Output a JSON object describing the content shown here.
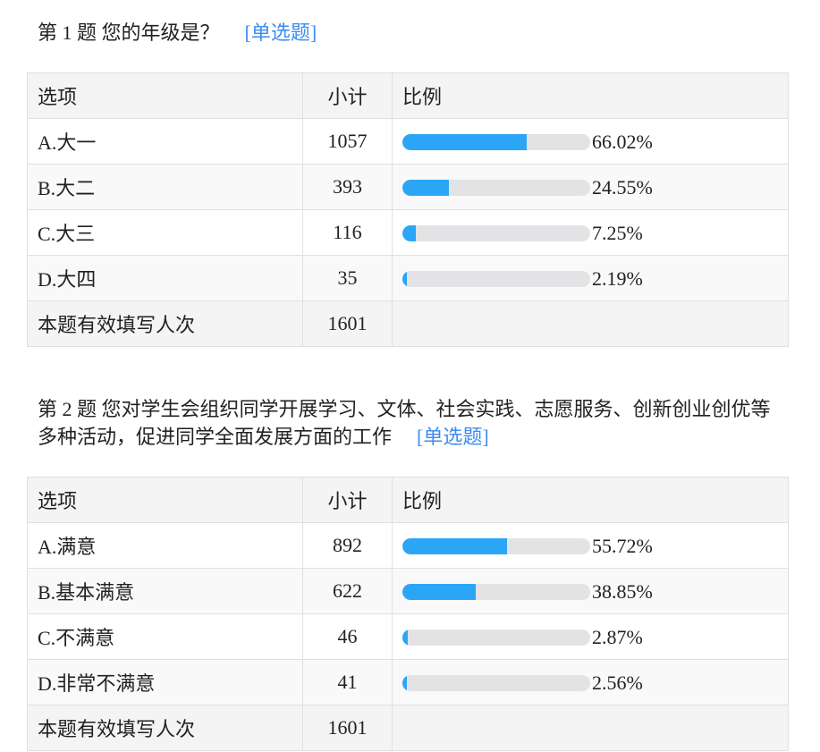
{
  "questions": [
    {
      "title": "第 1 题   您的年级是？",
      "type": "[单选题]",
      "headers": [
        "选项",
        "小计",
        "比例"
      ],
      "rows": [
        {
          "option": "A.大一",
          "count": "1057",
          "percent": "66.02%",
          "fraction": 0.6602
        },
        {
          "option": "B.大二",
          "count": "393",
          "percent": "24.55%",
          "fraction": 0.2455
        },
        {
          "option": "C.大三",
          "count": "116",
          "percent": "7.25%",
          "fraction": 0.0725
        },
        {
          "option": "D.大四",
          "count": "35",
          "percent": "2.19%",
          "fraction": 0.0219
        }
      ],
      "total_label": "本题有效填写人次",
      "total": "1601"
    },
    {
      "title": "第 2 题   您对学生会组织同学开展学习、文体、社会实践、志愿服务、创新创业创优等多种活动，促进同学全面发展方面的工作",
      "type": "[单选题]",
      "headers": [
        "选项",
        "小计",
        "比例"
      ],
      "rows": [
        {
          "option": "A.满意",
          "count": "892",
          "percent": "55.72%",
          "fraction": 0.5572
        },
        {
          "option": "B.基本满意",
          "count": "622",
          "percent": "38.85%",
          "fraction": 0.3885
        },
        {
          "option": "C.不满意",
          "count": "46",
          "percent": "2.87%",
          "fraction": 0.0287
        },
        {
          "option": "D.非常不满意",
          "count": "41",
          "percent": "2.56%",
          "fraction": 0.0256
        }
      ],
      "total_label": "本题有效填写人次",
      "total": "1601"
    }
  ],
  "colors": {
    "bar_fill": "#2ba6f7",
    "bar_track": "#e3e3e5",
    "type_link": "#3b8cf0"
  }
}
